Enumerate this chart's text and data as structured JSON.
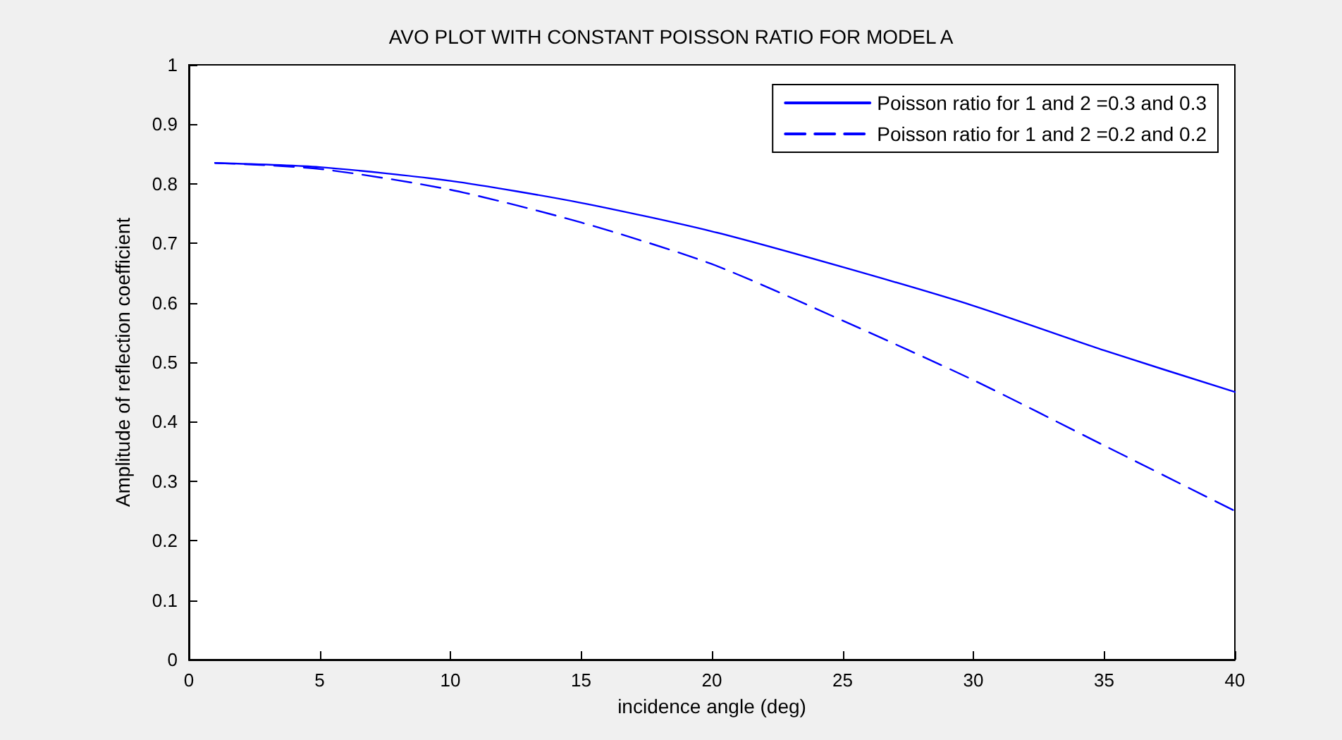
{
  "chart_data": {
    "type": "line",
    "title": "AVO PLOT WITH CONSTANT POISSON RATIO FOR MODEL A",
    "xlabel": "incidence angle (deg)",
    "ylabel": "Amplitude of reflection coefficient",
    "x": [
      1,
      5,
      10,
      15,
      20,
      25,
      30,
      35,
      40
    ],
    "series": [
      {
        "name": "Poisson ratio for 1 and 2 =0.3 and 0.3",
        "color": "#0000ff",
        "line_style": "solid",
        "values": [
          0.835,
          0.828,
          0.805,
          0.768,
          0.72,
          0.66,
          0.595,
          0.52,
          0.45
        ]
      },
      {
        "name": "Poisson ratio for 1 and 2 =0.2 and 0.2",
        "color": "#0000ff",
        "line_style": "dashed",
        "values": [
          0.835,
          0.825,
          0.79,
          0.735,
          0.665,
          0.57,
          0.47,
          0.36,
          0.25
        ]
      }
    ],
    "xlim": [
      0,
      40
    ],
    "xticks": [
      0,
      5,
      10,
      15,
      20,
      25,
      30,
      35,
      40
    ],
    "ylim": [
      0,
      1
    ],
    "yticks": [
      0,
      0.1,
      0.2,
      0.3,
      0.4,
      0.5,
      0.6,
      0.7,
      0.8,
      0.9,
      1
    ],
    "grid": false,
    "legend": "top right",
    "marker": "none"
  }
}
